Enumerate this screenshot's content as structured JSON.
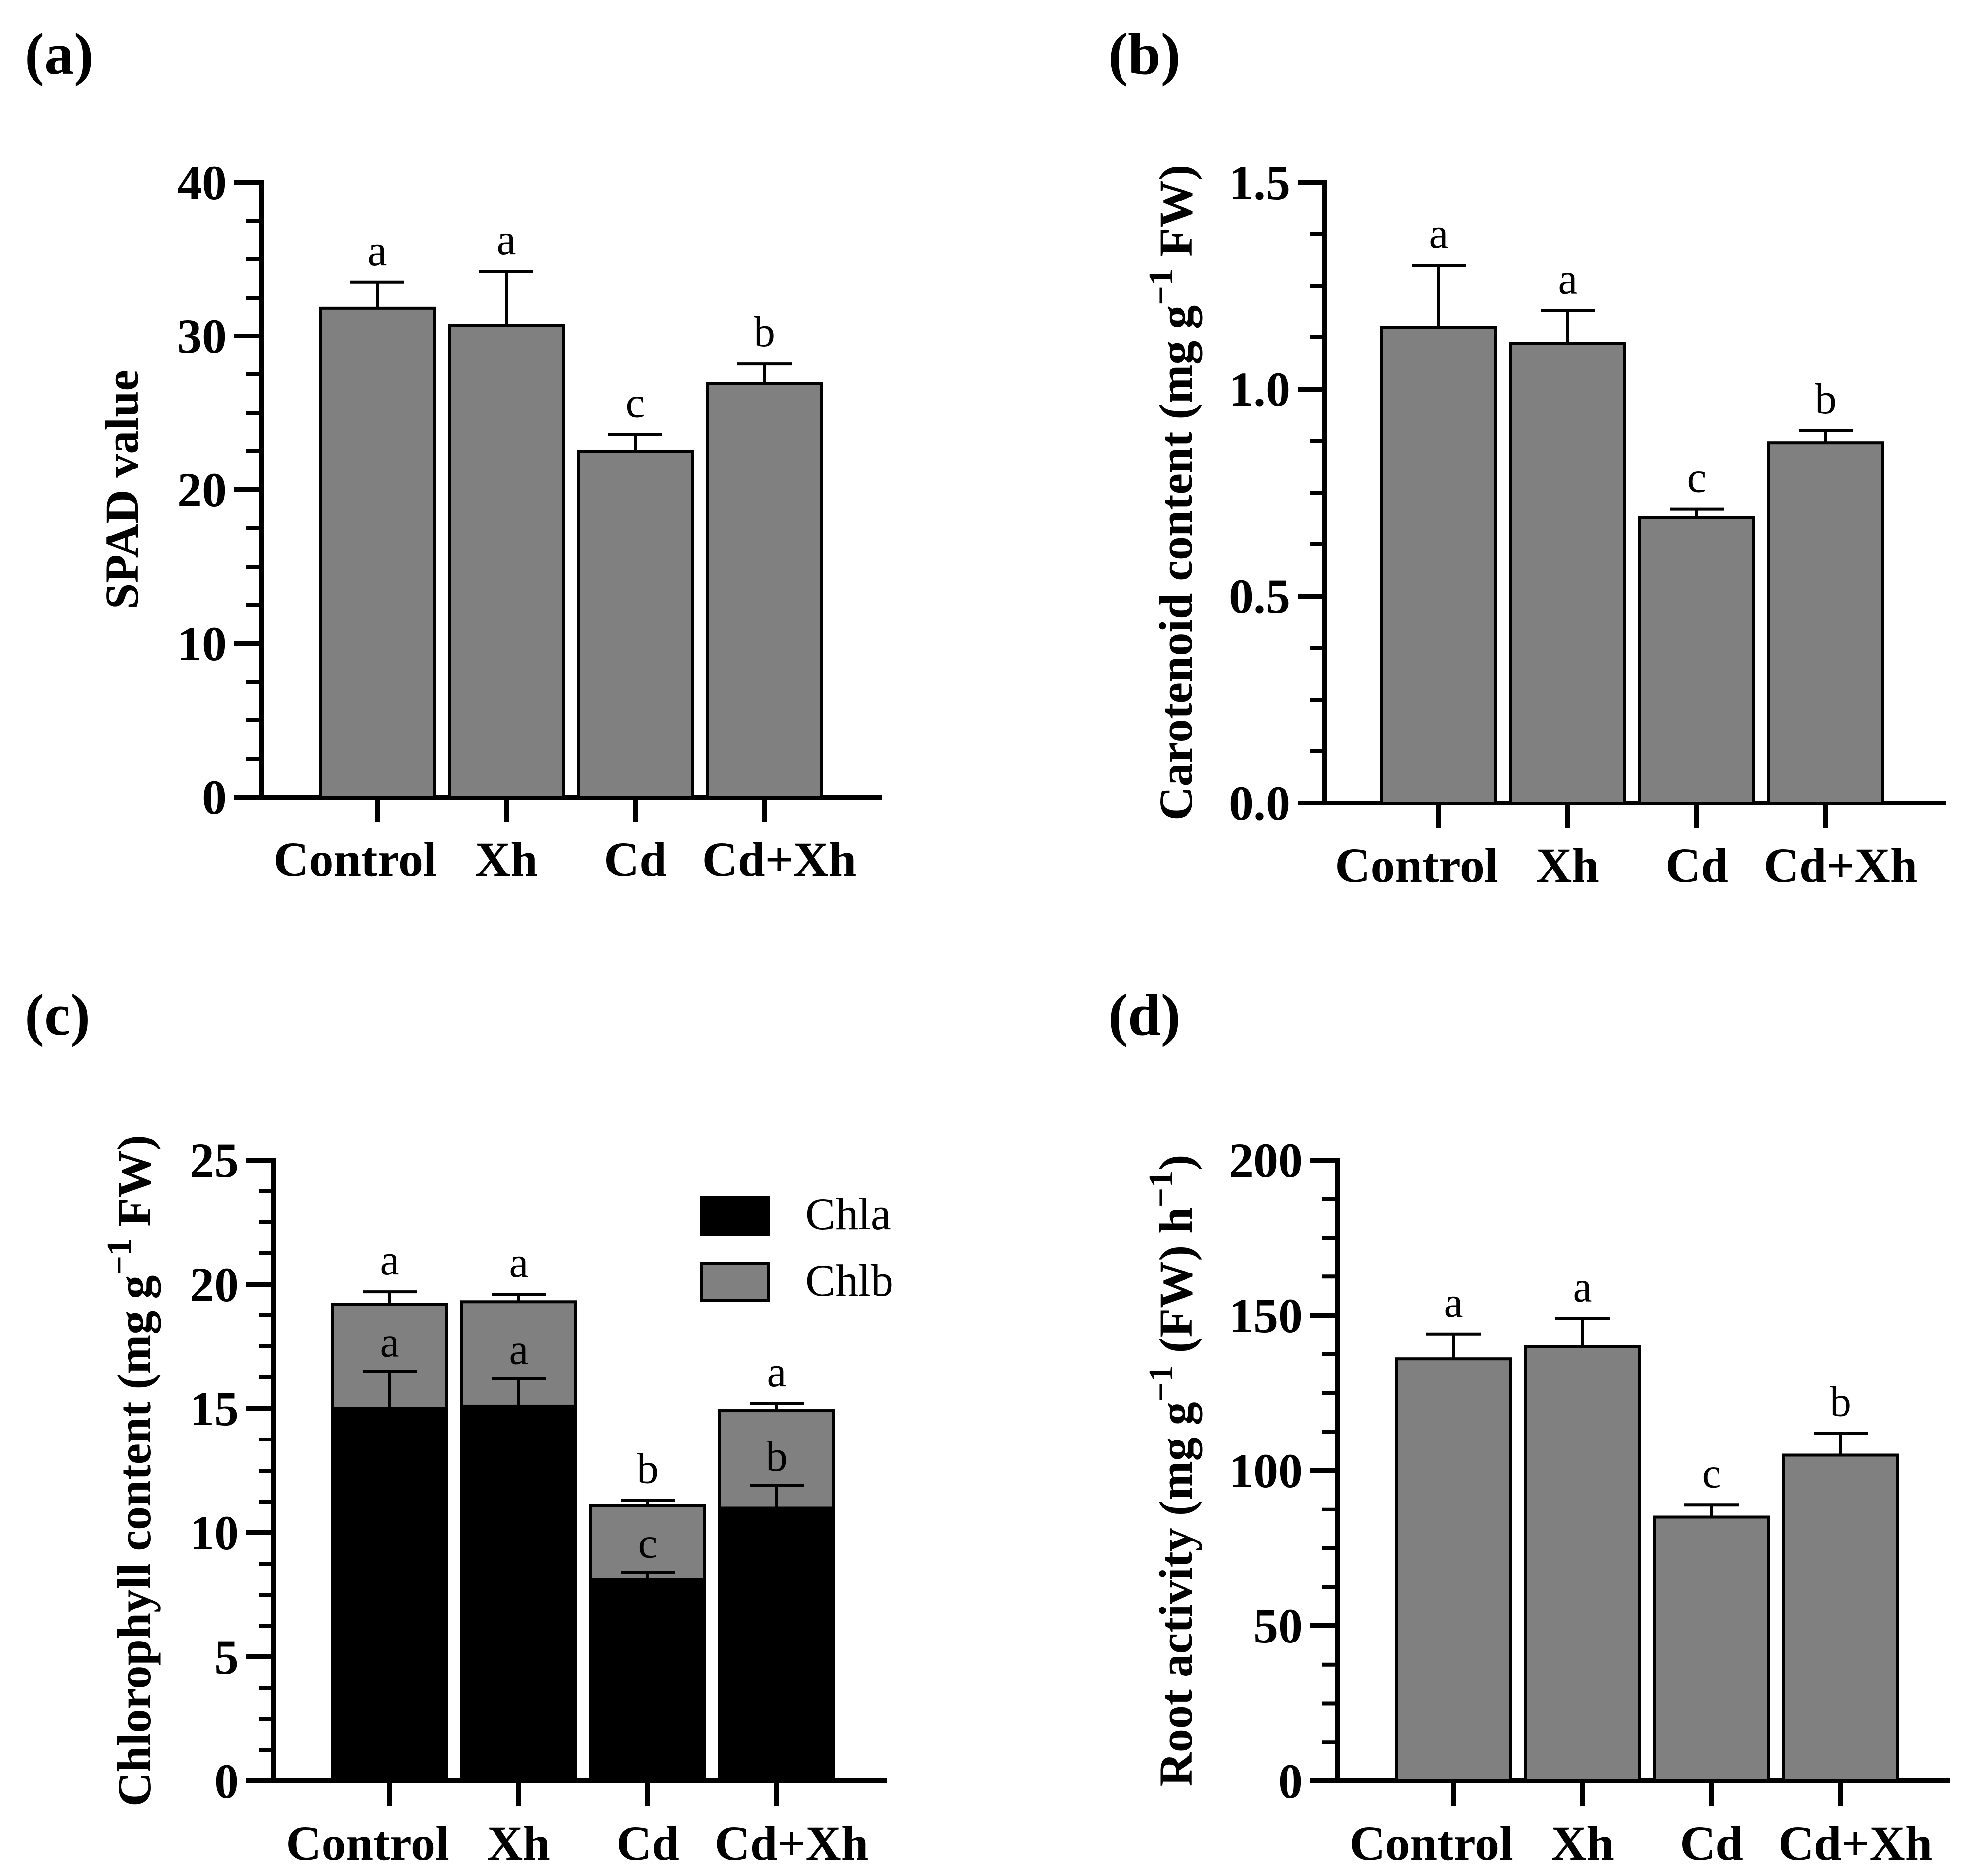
{
  "figure": {
    "colors": {
      "bar": "#808080",
      "chla": "#000000",
      "chlb": "#808080",
      "axis": "#000000"
    },
    "panels": [
      {
        "label": "(a)",
        "type": "bar",
        "ylabel": "SPAD value",
        "ylim": [
          0,
          40
        ],
        "yticks": [
          0,
          10,
          20,
          30,
          40
        ],
        "yminor": 4,
        "categories": [
          "Control",
          "Xh",
          "Cd",
          "Cd+Xh"
        ],
        "values": [
          31.8,
          30.7,
          22.5,
          26.9
        ],
        "errors": [
          1.7,
          3.5,
          1.1,
          1.3
        ],
        "sig": [
          "a",
          "a",
          "c",
          "b"
        ]
      },
      {
        "label": "(b)",
        "type": "bar",
        "ylabel": "Carotenoid content (mg g",
        "ylabel_sup": "−1",
        "ylabel_tail": " FW)",
        "ylim": [
          0,
          1.5
        ],
        "yticks": [
          "0.0",
          "0.5",
          "1.0",
          "1.5"
        ],
        "yminor": 4,
        "categories": [
          "Control",
          "Xh",
          "Cd",
          "Cd+Xh"
        ],
        "values": [
          1.15,
          1.11,
          0.69,
          0.87
        ],
        "errors": [
          0.15,
          0.08,
          0.02,
          0.03
        ],
        "sig": [
          "a",
          "a",
          "c",
          "b"
        ]
      },
      {
        "label": "(c)",
        "type": "stacked-bar",
        "ylabel": "Chlorophyll content (mg g",
        "ylabel_sup": "−1",
        "ylabel_tail": " FW)",
        "ylim": [
          0,
          25
        ],
        "yticks": [
          0,
          5,
          10,
          15,
          20,
          25
        ],
        "yminor": 4,
        "categories": [
          "Control",
          "Xh",
          "Cd",
          "Cd+Xh"
        ],
        "series": [
          {
            "name": "Chla",
            "values": [
              15.0,
              15.1,
              8.1,
              11.0
            ],
            "errors": [
              1.5,
              1.1,
              0.3,
              0.9
            ],
            "sig": [
              "a",
              "a",
              "c",
              "b"
            ]
          },
          {
            "name": "Chlb",
            "totals": [
              19.2,
              19.3,
              11.1,
              14.9
            ],
            "errors": [
              0.5,
              0.3,
              0.2,
              0.3
            ],
            "sig": [
              "a",
              "a",
              "b",
              "a"
            ]
          }
        ],
        "legend": [
          "Chla",
          "Chlb"
        ]
      },
      {
        "label": "(d)",
        "type": "bar",
        "ylabel": "Root activity (mg g",
        "ylabel_sup": "−1",
        "ylabel_mid": " (FW) h",
        "ylabel_sup2": "−1",
        "ylabel_tail": ")",
        "ylim": [
          0,
          200
        ],
        "yticks": [
          0,
          50,
          100,
          150,
          200
        ],
        "yminor": 4,
        "categories": [
          "Control",
          "Xh",
          "Cd",
          "Cd+Xh"
        ],
        "values": [
          136,
          140,
          85,
          105
        ],
        "errors": [
          8,
          9,
          4,
          7
        ],
        "sig": [
          "a",
          "a",
          "c",
          "b"
        ]
      }
    ]
  },
  "chart_data": [
    {
      "type": "bar",
      "title": "(a)",
      "categories": [
        "Control",
        "Xh",
        "Cd",
        "Cd+Xh"
      ],
      "values": [
        31.8,
        30.7,
        22.5,
        26.9
      ],
      "errors": [
        1.7,
        3.5,
        1.1,
        1.3
      ],
      "annotations": [
        "a",
        "a",
        "c",
        "b"
      ],
      "xlabel": "",
      "ylabel": "SPAD value",
      "ylim": [
        0,
        40
      ]
    },
    {
      "type": "bar",
      "title": "(b)",
      "categories": [
        "Control",
        "Xh",
        "Cd",
        "Cd+Xh"
      ],
      "values": [
        1.15,
        1.11,
        0.69,
        0.87
      ],
      "errors": [
        0.15,
        0.08,
        0.02,
        0.03
      ],
      "annotations": [
        "a",
        "a",
        "c",
        "b"
      ],
      "xlabel": "",
      "ylabel": "Carotenoid content (mg g−1 FW)",
      "ylim": [
        0,
        1.5
      ]
    },
    {
      "type": "bar",
      "stacked": true,
      "title": "(c)",
      "categories": [
        "Control",
        "Xh",
        "Cd",
        "Cd+Xh"
      ],
      "series": [
        {
          "name": "Chla",
          "values": [
            15.0,
            15.1,
            8.1,
            11.0
          ],
          "annotations": [
            "a",
            "a",
            "c",
            "b"
          ]
        },
        {
          "name": "Chlb",
          "values": [
            4.2,
            4.2,
            3.0,
            3.9
          ],
          "annotations": [
            "a",
            "a",
            "b",
            "a"
          ]
        }
      ],
      "xlabel": "",
      "ylabel": "Chlorophyll content (mg g−1 FW)",
      "ylim": [
        0,
        25
      ],
      "legend": "top-right"
    },
    {
      "type": "bar",
      "title": "(d)",
      "categories": [
        "Control",
        "Xh",
        "Cd",
        "Cd+Xh"
      ],
      "values": [
        136,
        140,
        85,
        105
      ],
      "errors": [
        8,
        9,
        4,
        7
      ],
      "annotations": [
        "a",
        "a",
        "c",
        "b"
      ],
      "xlabel": "",
      "ylabel": "Root activity (mg g−1 (FW) h−1)",
      "ylim": [
        0,
        200
      ]
    }
  ]
}
